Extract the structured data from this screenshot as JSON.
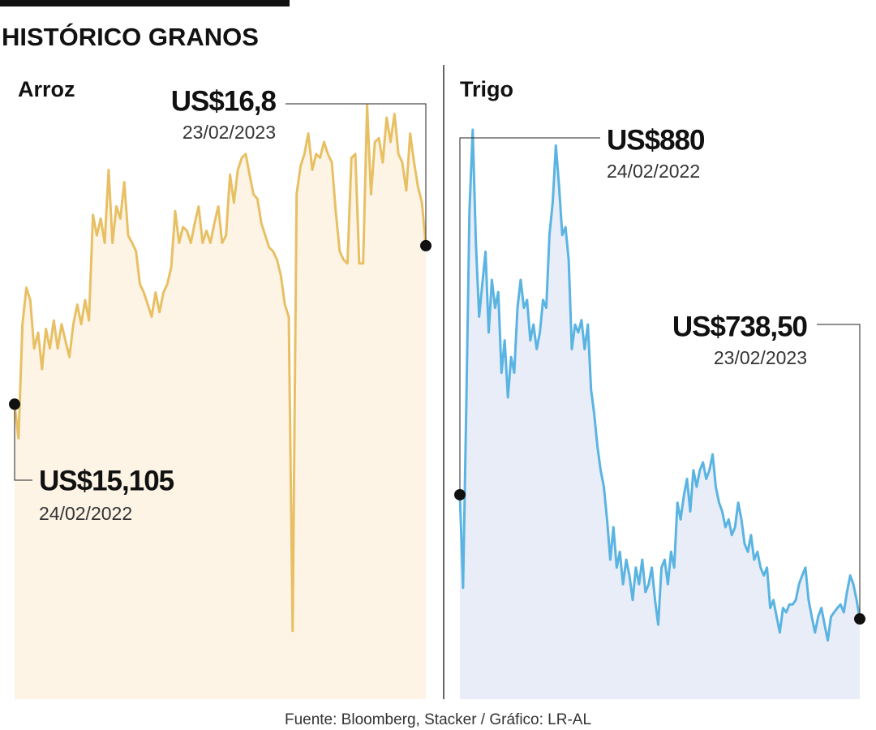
{
  "header": {
    "title": "HISTÓRICO GRANOS"
  },
  "footer": {
    "source": "Fuente: Bloomberg, Stacker / Gráfico: LR-AL"
  },
  "chart_data": [
    {
      "type": "area",
      "title": "Arroz",
      "color": "#e8c064",
      "fill": "#fdf4e6",
      "ylim": [
        11.95,
        18.3
      ],
      "values": [
        15.105,
        14.74,
        15.96,
        16.35,
        16.22,
        15.7,
        15.87,
        15.48,
        15.91,
        15.7,
        16.0,
        15.7,
        15.96,
        15.78,
        15.61,
        15.96,
        16.17,
        15.96,
        16.22,
        16.0,
        17.13,
        16.91,
        17.09,
        16.83,
        17.61,
        16.83,
        17.22,
        17.09,
        17.48,
        16.91,
        16.83,
        16.74,
        16.39,
        16.3,
        16.17,
        16.04,
        16.3,
        16.09,
        16.3,
        16.39,
        16.57,
        17.17,
        16.83,
        17.0,
        16.96,
        16.83,
        17.04,
        17.22,
        16.83,
        16.96,
        16.83,
        17.04,
        17.22,
        16.83,
        16.91,
        17.56,
        17.26,
        17.61,
        17.74,
        17.78,
        17.56,
        17.35,
        17.3,
        17.04,
        16.91,
        16.78,
        16.74,
        16.65,
        16.48,
        16.17,
        16.04,
        12.68,
        17.35,
        17.65,
        17.78,
        18.0,
        17.61,
        17.78,
        17.74,
        17.91,
        17.78,
        17.69,
        17.17,
        16.74,
        16.65,
        16.61,
        17.74,
        17.78,
        16.61,
        16.61,
        18.3,
        17.35,
        17.91,
        17.95,
        17.69,
        18.17,
        17.91,
        18.21,
        17.78,
        17.69,
        17.39,
        18.0,
        17.69,
        17.43,
        17.26,
        16.8
      ],
      "annotations": [
        {
          "value": 15.105,
          "label": "US$15,105",
          "date": "24/02/2022"
        },
        {
          "value": 16.8,
          "label": "US$16,8",
          "date": "23/02/2023"
        }
      ]
    },
    {
      "type": "area",
      "title": "Trigo",
      "color": "#5ab4e2",
      "fill": "#e9edf8",
      "ylim": [
        647,
        1296
      ],
      "values": [
        880,
        774,
        982,
        1204,
        1296,
        1167,
        1083,
        1120,
        1157,
        1065,
        1125,
        1093,
        1111,
        1019,
        1056,
        991,
        1037,
        1019,
        1093,
        1125,
        1093,
        1102,
        1056,
        1074,
        1046,
        1065,
        1102,
        1093,
        1176,
        1213,
        1278,
        1231,
        1176,
        1185,
        1148,
        1046,
        1074,
        1065,
        1079,
        1046,
        1074,
        1000,
        972,
        935,
        908,
        889,
        852,
        806,
        843,
        797,
        815,
        778,
        806,
        788,
        760,
        797,
        778,
        806,
        769,
        778,
        797,
        760,
        732,
        797,
        806,
        778,
        815,
        797,
        871,
        852,
        879,
        898,
        861,
        908,
        889,
        908,
        917,
        898,
        908,
        926,
        889,
        871,
        861,
        843,
        852,
        834,
        843,
        871,
        852,
        824,
        815,
        834,
        806,
        815,
        797,
        788,
        797,
        751,
        760,
        741,
        723,
        751,
        746,
        755,
        755,
        760,
        778,
        788,
        797,
        760,
        741,
        723,
        741,
        751,
        732,
        714,
        741,
        746,
        751,
        755,
        746,
        769,
        788,
        778,
        760,
        738.5
      ],
      "annotations": [
        {
          "value": 880,
          "label": "US$880",
          "date": "24/02/2022"
        },
        {
          "value": 738.5,
          "label": "US$738,50",
          "date": "23/02/2023"
        }
      ]
    }
  ]
}
